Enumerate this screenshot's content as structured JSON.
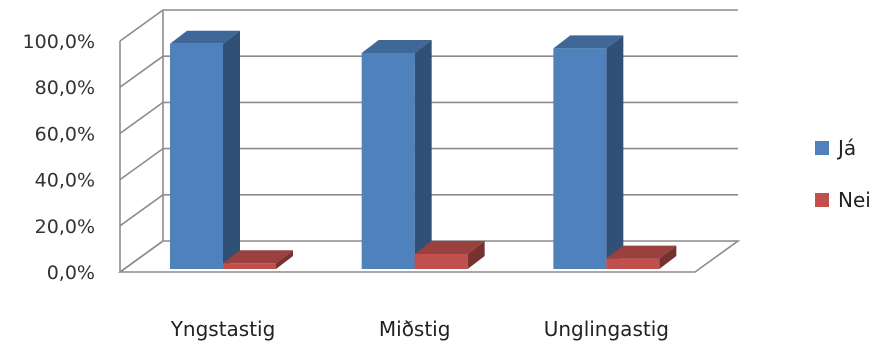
{
  "chart_data": {
    "type": "bar",
    "style": "3d-clustered-column",
    "categories": [
      "Yngstastig",
      "Miðstig",
      "Unglingastig"
    ],
    "series": [
      {
        "name": "Já",
        "values": [
          97.5,
          93.5,
          95.5
        ],
        "color": "#4f81bd"
      },
      {
        "name": "Nei",
        "values": [
          2.5,
          6.5,
          4.5
        ],
        "color": "#c0504d"
      }
    ],
    "y_ticks": [
      "0,0%",
      "20,0%",
      "40,0%",
      "60,0%",
      "80,0%",
      "100,0%"
    ],
    "ylim": [
      0,
      100
    ],
    "grid": true,
    "legend_position": "right"
  }
}
